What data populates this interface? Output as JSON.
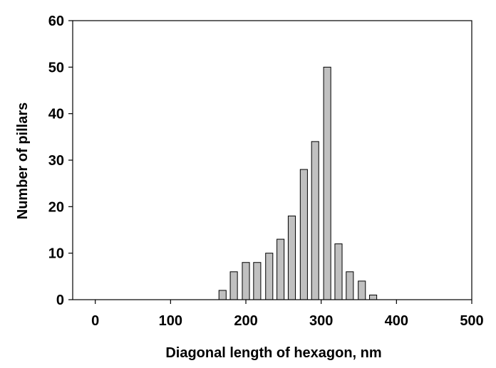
{
  "chart_data": {
    "type": "bar",
    "title": "",
    "xlabel": "Diagonal length of hexagon, nm",
    "ylabel": "Number of pillars",
    "xlim": [
      -30,
      500
    ],
    "ylim": [
      0,
      60
    ],
    "x_ticks": [
      0,
      100,
      200,
      300,
      400,
      500
    ],
    "x_tick_labels": [
      "0",
      "100",
      "200",
      "300",
      "400",
      "500"
    ],
    "y_ticks": [
      0,
      10,
      20,
      30,
      40,
      50,
      60
    ],
    "y_tick_labels": [
      "0",
      "10",
      "20",
      "30",
      "40",
      "50",
      "60"
    ],
    "bin_width": 15.4,
    "x": [
      169,
      184,
      200,
      215,
      231,
      246,
      261,
      277,
      292,
      308,
      323,
      338,
      354,
      369
    ],
    "values": [
      2,
      6,
      8,
      8,
      10,
      13,
      18,
      28,
      34,
      50,
      12,
      6,
      4,
      1
    ],
    "bar_color": "#c0c0c0",
    "bar_edge_color": "#000000",
    "grid": false,
    "legend": "none"
  }
}
